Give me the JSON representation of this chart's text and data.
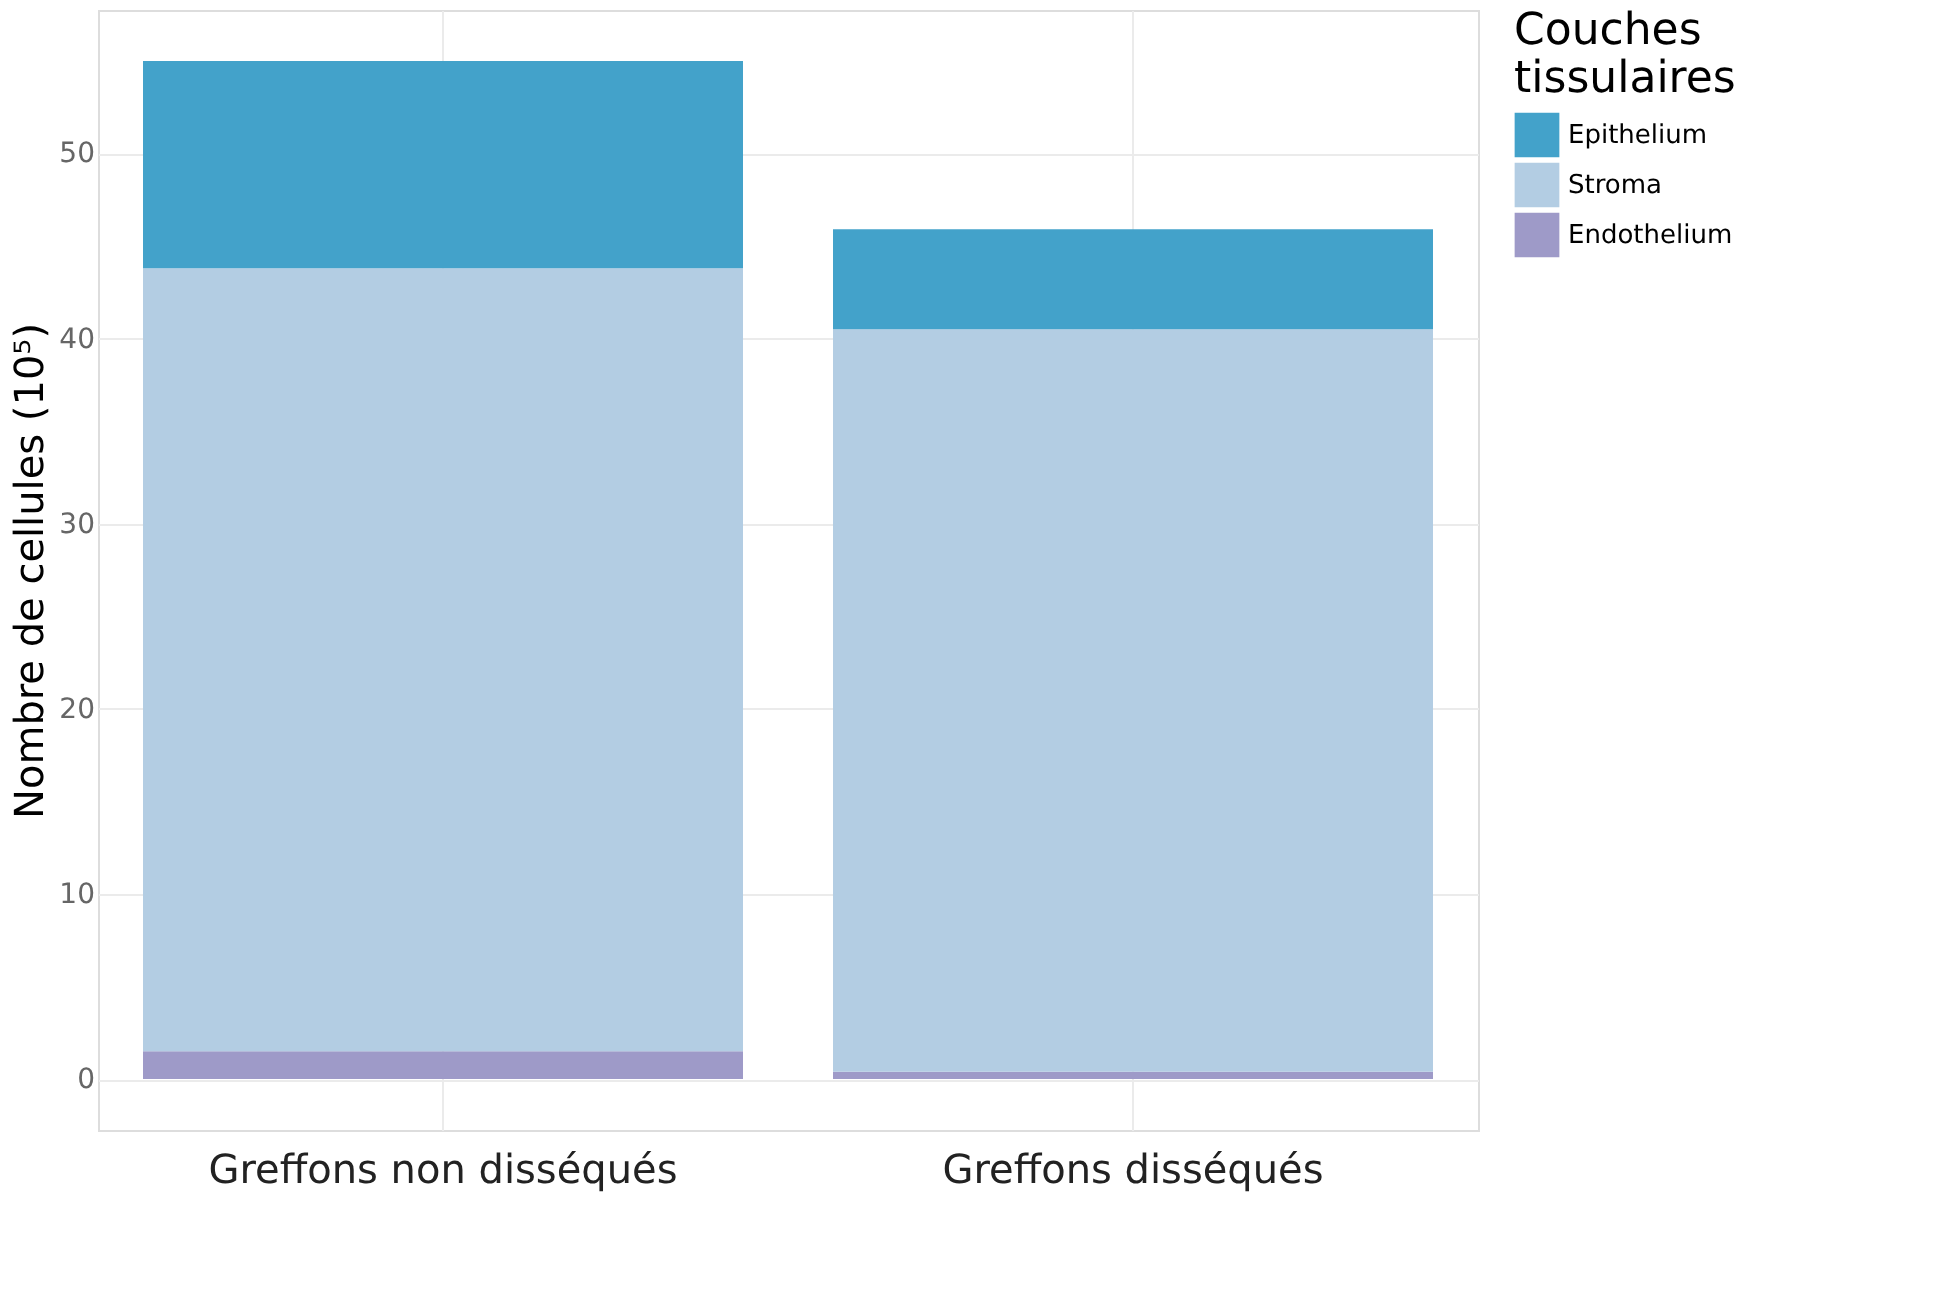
{
  "chart_data": {
    "type": "bar",
    "stacked": true,
    "ylabel": "Nombre de cellules (10⁵)",
    "legend_title": "Couches tissulaires",
    "categories": [
      "Greffons non disséqués",
      "Greffons disséqués"
    ],
    "series": [
      {
        "name": "Endothelium",
        "color": "#9e9ac8",
        "values": [
          1.5,
          0.4
        ]
      },
      {
        "name": "Stroma",
        "color": "#b3cde3",
        "values": [
          42.3,
          40.1
        ]
      },
      {
        "name": "Epithelium",
        "color": "#43a2ca",
        "values": [
          11.2,
          5.4
        ]
      }
    ],
    "ylim": [
      -2.75,
      57.75
    ],
    "yticks": [
      0,
      10,
      20,
      30,
      40,
      50
    ],
    "grid": true,
    "legend": "right"
  }
}
